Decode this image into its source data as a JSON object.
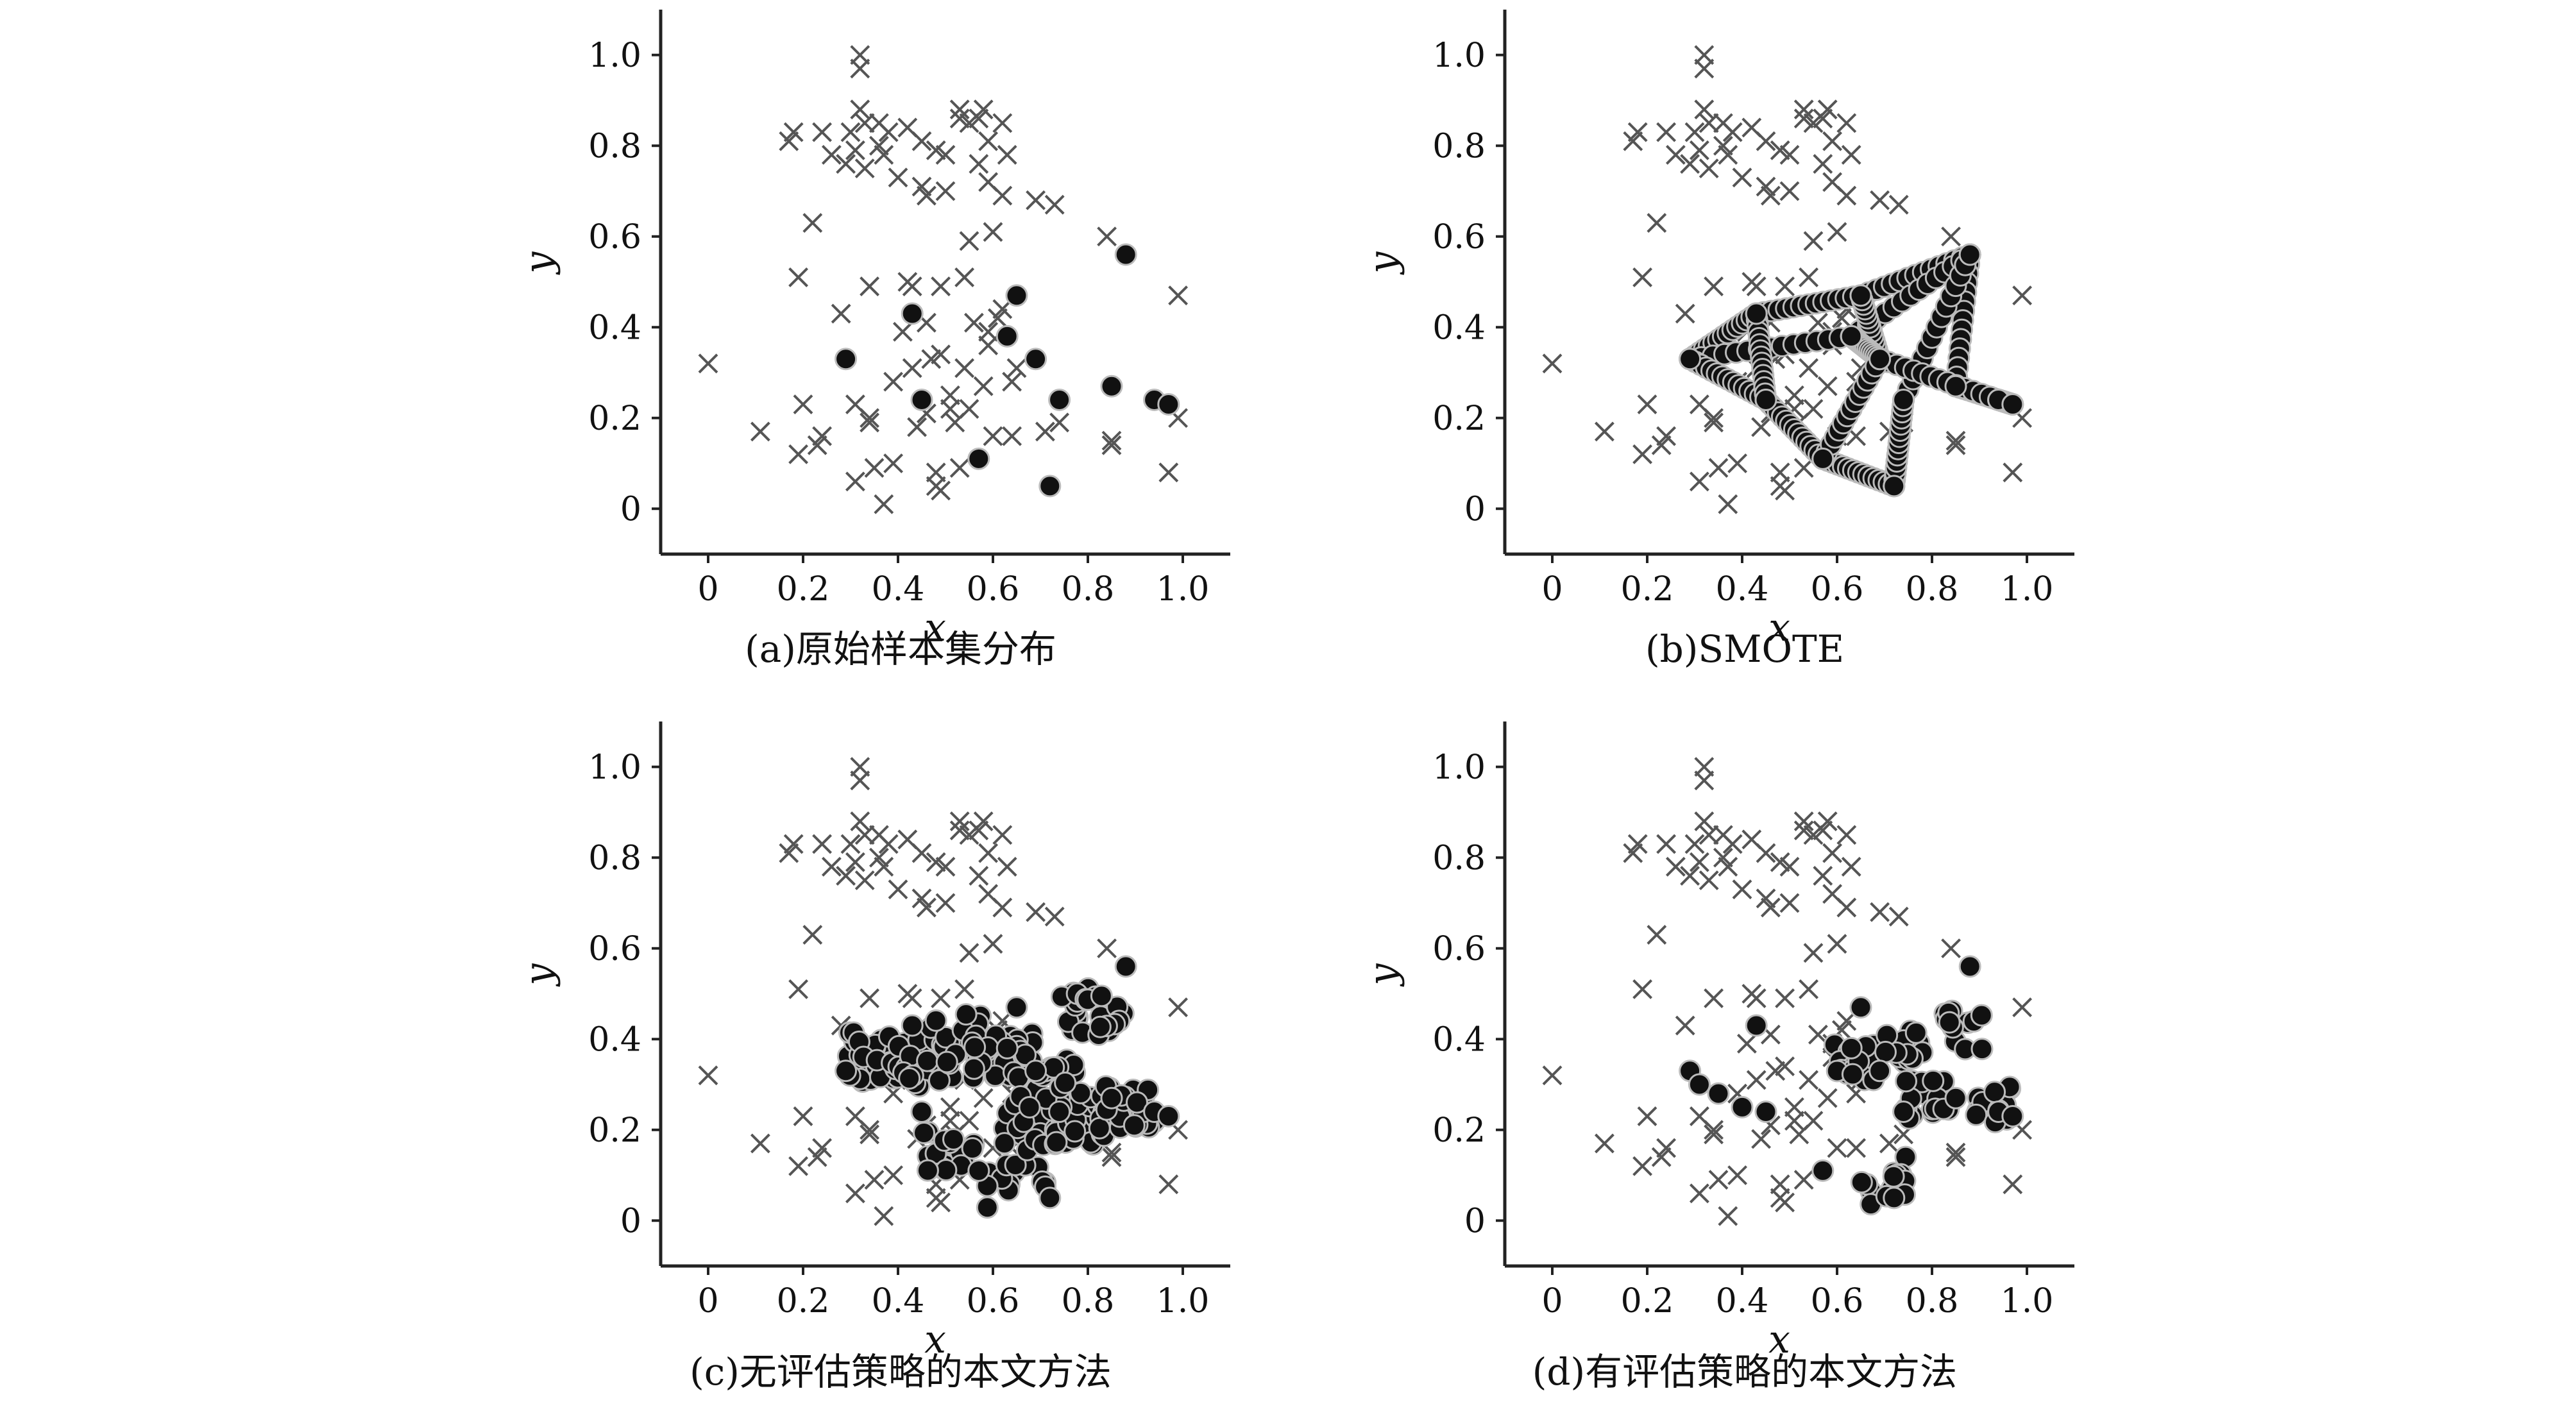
{
  "figure": {
    "colors": {
      "majority": "#555555",
      "minority": "#111111",
      "minority_edge": "#bbbbbb",
      "axis": "#222222"
    },
    "markers": {
      "majority": "x-marker",
      "minority": "filled-circle"
    }
  },
  "chart_data": [
    {
      "id": "a",
      "type": "scatter",
      "caption": "(a)原始样本集分布",
      "xlabel": "x",
      "ylabel": "y",
      "xlim": [
        -0.1,
        1.1
      ],
      "ylim": [
        -0.1,
        1.1
      ],
      "xticks": [
        "0",
        "0.2",
        "0.4",
        "0.6",
        "0.8",
        "1.0"
      ],
      "yticks": [
        "0",
        "0.2",
        "0.4",
        "0.6",
        "0.8",
        "1.0"
      ],
      "grid": false,
      "series": [
        {
          "marker": "x",
          "points": "majority"
        },
        {
          "marker": "o",
          "points": [
            [
              0.29,
              0.33
            ],
            [
              0.43,
              0.43
            ],
            [
              0.45,
              0.24
            ],
            [
              0.57,
              0.11
            ],
            [
              0.63,
              0.38
            ],
            [
              0.65,
              0.47
            ],
            [
              0.69,
              0.33
            ],
            [
              0.72,
              0.05
            ],
            [
              0.74,
              0.24
            ],
            [
              0.85,
              0.27
            ],
            [
              0.88,
              0.56
            ],
            [
              0.94,
              0.24
            ],
            [
              0.97,
              0.23
            ]
          ]
        }
      ]
    },
    {
      "id": "b",
      "type": "scatter",
      "caption": "(b)SMOTE",
      "xlabel": "x",
      "ylabel": "y",
      "xlim": [
        -0.1,
        1.1
      ],
      "ylim": [
        -0.1,
        1.1
      ],
      "xticks": [
        "0",
        "0.2",
        "0.4",
        "0.6",
        "0.8",
        "1.0"
      ],
      "yticks": [
        "0",
        "0.2",
        "0.4",
        "0.6",
        "0.8",
        "1.0"
      ],
      "grid": false,
      "series": [
        {
          "marker": "x",
          "points": "majority"
        },
        {
          "marker": "o",
          "points": "smote"
        }
      ]
    },
    {
      "id": "c",
      "type": "scatter",
      "caption": "(c)无评估策略的本文方法",
      "xlabel": "x",
      "ylabel": "y",
      "xlim": [
        -0.1,
        1.1
      ],
      "ylim": [
        -0.1,
        1.1
      ],
      "xticks": [
        "0",
        "0.2",
        "0.4",
        "0.6",
        "0.8",
        "1.0"
      ],
      "yticks": [
        "0",
        "0.2",
        "0.4",
        "0.6",
        "0.8",
        "1.0"
      ],
      "grid": false,
      "series": [
        {
          "marker": "x",
          "points": "majority"
        },
        {
          "marker": "o",
          "points": "dense"
        }
      ]
    },
    {
      "id": "d",
      "type": "scatter",
      "caption": "(d)有评估策略的本文方法",
      "xlabel": "x",
      "ylabel": "y",
      "xlim": [
        -0.1,
        1.1
      ],
      "ylim": [
        -0.1,
        1.1
      ],
      "xticks": [
        "0",
        "0.2",
        "0.4",
        "0.6",
        "0.8",
        "1.0"
      ],
      "yticks": [
        "0",
        "0.2",
        "0.4",
        "0.6",
        "0.8",
        "1.0"
      ],
      "grid": false,
      "series": [
        {
          "marker": "x",
          "points": "majority"
        },
        {
          "marker": "o",
          "points": "filtered"
        }
      ]
    }
  ],
  "majority_points": [
    [
      0.0,
      0.32
    ],
    [
      0.11,
      0.17
    ],
    [
      0.17,
      0.81
    ],
    [
      0.18,
      0.83
    ],
    [
      0.19,
      0.51
    ],
    [
      0.19,
      0.12
    ],
    [
      0.2,
      0.23
    ],
    [
      0.22,
      0.63
    ],
    [
      0.23,
      0.14
    ],
    [
      0.24,
      0.16
    ],
    [
      0.24,
      0.83
    ],
    [
      0.26,
      0.78
    ],
    [
      0.28,
      0.43
    ],
    [
      0.29,
      0.76
    ],
    [
      0.3,
      0.83
    ],
    [
      0.31,
      0.79
    ],
    [
      0.31,
      0.23
    ],
    [
      0.31,
      0.06
    ],
    [
      0.32,
      1.0
    ],
    [
      0.32,
      0.97
    ],
    [
      0.32,
      0.88
    ],
    [
      0.33,
      0.85
    ],
    [
      0.33,
      0.75
    ],
    [
      0.34,
      0.49
    ],
    [
      0.34,
      0.19
    ],
    [
      0.34,
      0.2
    ],
    [
      0.35,
      0.09
    ],
    [
      0.36,
      0.8
    ],
    [
      0.36,
      0.85
    ],
    [
      0.37,
      0.01
    ],
    [
      0.37,
      0.78
    ],
    [
      0.38,
      0.83
    ],
    [
      0.39,
      0.28
    ],
    [
      0.39,
      0.1
    ],
    [
      0.4,
      0.73
    ],
    [
      0.41,
      0.39
    ],
    [
      0.42,
      0.84
    ],
    [
      0.42,
      0.5
    ],
    [
      0.43,
      0.49
    ],
    [
      0.43,
      0.31
    ],
    [
      0.44,
      0.18
    ],
    [
      0.45,
      0.81
    ],
    [
      0.45,
      0.71
    ],
    [
      0.46,
      0.69
    ],
    [
      0.46,
      0.41
    ],
    [
      0.46,
      0.21
    ],
    [
      0.47,
      0.33
    ],
    [
      0.48,
      0.79
    ],
    [
      0.48,
      0.08
    ],
    [
      0.48,
      0.05
    ],
    [
      0.49,
      0.49
    ],
    [
      0.49,
      0.34
    ],
    [
      0.49,
      0.04
    ],
    [
      0.5,
      0.78
    ],
    [
      0.5,
      0.7
    ],
    [
      0.51,
      0.22
    ],
    [
      0.51,
      0.25
    ],
    [
      0.52,
      0.19
    ],
    [
      0.53,
      0.86
    ],
    [
      0.53,
      0.88
    ],
    [
      0.53,
      0.09
    ],
    [
      0.54,
      0.51
    ],
    [
      0.54,
      0.31
    ],
    [
      0.55,
      0.85
    ],
    [
      0.55,
      0.59
    ],
    [
      0.55,
      0.22
    ],
    [
      0.56,
      0.41
    ],
    [
      0.57,
      0.76
    ],
    [
      0.57,
      0.86
    ],
    [
      0.58,
      0.88
    ],
    [
      0.58,
      0.27
    ],
    [
      0.59,
      0.81
    ],
    [
      0.59,
      0.72
    ],
    [
      0.59,
      0.39
    ],
    [
      0.59,
      0.36
    ],
    [
      0.6,
      0.61
    ],
    [
      0.6,
      0.16
    ],
    [
      0.61,
      0.42
    ],
    [
      0.62,
      0.85
    ],
    [
      0.62,
      0.69
    ],
    [
      0.62,
      0.44
    ],
    [
      0.63,
      0.78
    ],
    [
      0.64,
      0.16
    ],
    [
      0.64,
      0.28
    ],
    [
      0.65,
      0.31
    ],
    [
      0.69,
      0.68
    ],
    [
      0.71,
      0.17
    ],
    [
      0.73,
      0.67
    ],
    [
      0.74,
      0.19
    ],
    [
      0.84,
      0.6
    ],
    [
      0.85,
      0.15
    ],
    [
      0.85,
      0.14
    ],
    [
      0.97,
      0.08
    ],
    [
      0.99,
      0.47
    ],
    [
      0.99,
      0.2
    ]
  ]
}
